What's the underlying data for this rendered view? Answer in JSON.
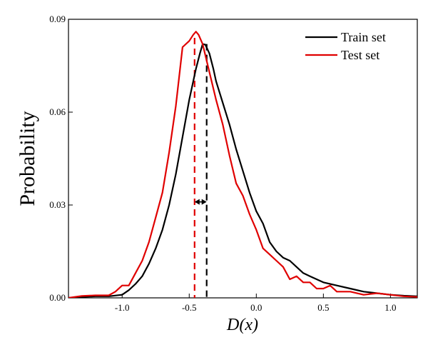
{
  "chart_data": {
    "type": "line",
    "title": "",
    "xlabel": "D(x)",
    "ylabel": "Probability",
    "xlim": [
      -1.4,
      1.2
    ],
    "ylim": [
      0,
      0.09
    ],
    "xticks": [
      -1.0,
      -0.5,
      0.0,
      0.5,
      1.0
    ],
    "xtick_labels": [
      "-1.0",
      "-0.5",
      "0.0",
      "0.5",
      "1.0"
    ],
    "yticks": [
      0.0,
      0.03,
      0.06,
      0.09
    ],
    "ytick_labels": [
      "0.00",
      "0.03",
      "0.06",
      "0.09"
    ],
    "legend_position": "top-right",
    "series": [
      {
        "name": "Train set",
        "color": "#000000",
        "points": [
          [
            -1.4,
            0.0
          ],
          [
            -1.3,
            0.0003
          ],
          [
            -1.2,
            0.0005
          ],
          [
            -1.1,
            0.0005
          ],
          [
            -1.0,
            0.001
          ],
          [
            -0.95,
            0.0025
          ],
          [
            -0.9,
            0.0045
          ],
          [
            -0.85,
            0.007
          ],
          [
            -0.8,
            0.011
          ],
          [
            -0.75,
            0.016
          ],
          [
            -0.7,
            0.022
          ],
          [
            -0.65,
            0.03
          ],
          [
            -0.6,
            0.04
          ],
          [
            -0.55,
            0.052
          ],
          [
            -0.5,
            0.064
          ],
          [
            -0.45,
            0.074
          ],
          [
            -0.42,
            0.079
          ],
          [
            -0.4,
            0.082
          ],
          [
            -0.38,
            0.0818
          ],
          [
            -0.35,
            0.079
          ],
          [
            -0.32,
            0.074
          ],
          [
            -0.3,
            0.07
          ],
          [
            -0.25,
            0.063
          ],
          [
            -0.2,
            0.056
          ],
          [
            -0.15,
            0.048
          ],
          [
            -0.1,
            0.041
          ],
          [
            -0.05,
            0.034
          ],
          [
            0.0,
            0.028
          ],
          [
            0.05,
            0.024
          ],
          [
            0.1,
            0.018
          ],
          [
            0.15,
            0.015
          ],
          [
            0.2,
            0.013
          ],
          [
            0.25,
            0.012
          ],
          [
            0.3,
            0.01
          ],
          [
            0.35,
            0.008
          ],
          [
            0.4,
            0.007
          ],
          [
            0.5,
            0.005
          ],
          [
            0.6,
            0.004
          ],
          [
            0.7,
            0.003
          ],
          [
            0.8,
            0.002
          ],
          [
            0.9,
            0.0015
          ],
          [
            1.0,
            0.001
          ],
          [
            1.1,
            0.0007
          ],
          [
            1.2,
            0.0005
          ]
        ]
      },
      {
        "name": "Test set",
        "color": "#e00000",
        "points": [
          [
            -1.4,
            0.0
          ],
          [
            -1.3,
            0.0006
          ],
          [
            -1.2,
            0.0008
          ],
          [
            -1.1,
            0.0008
          ],
          [
            -1.05,
            0.002
          ],
          [
            -1.0,
            0.004
          ],
          [
            -0.95,
            0.004
          ],
          [
            -0.9,
            0.008
          ],
          [
            -0.85,
            0.012
          ],
          [
            -0.8,
            0.018
          ],
          [
            -0.75,
            0.026
          ],
          [
            -0.7,
            0.034
          ],
          [
            -0.65,
            0.047
          ],
          [
            -0.6,
            0.062
          ],
          [
            -0.55,
            0.081
          ],
          [
            -0.5,
            0.083
          ],
          [
            -0.47,
            0.085
          ],
          [
            -0.45,
            0.086
          ],
          [
            -0.43,
            0.085
          ],
          [
            -0.4,
            0.082
          ],
          [
            -0.35,
            0.073
          ],
          [
            -0.3,
            0.064
          ],
          [
            -0.25,
            0.056
          ],
          [
            -0.2,
            0.046
          ],
          [
            -0.15,
            0.037
          ],
          [
            -0.1,
            0.033
          ],
          [
            -0.05,
            0.027
          ],
          [
            0.0,
            0.022
          ],
          [
            0.05,
            0.016
          ],
          [
            0.1,
            0.014
          ],
          [
            0.15,
            0.012
          ],
          [
            0.2,
            0.01
          ],
          [
            0.25,
            0.006
          ],
          [
            0.3,
            0.007
          ],
          [
            0.35,
            0.005
          ],
          [
            0.4,
            0.005
          ],
          [
            0.45,
            0.003
          ],
          [
            0.5,
            0.003
          ],
          [
            0.55,
            0.004
          ],
          [
            0.6,
            0.002
          ],
          [
            0.7,
            0.002
          ],
          [
            0.8,
            0.001
          ],
          [
            0.9,
            0.0015
          ],
          [
            1.0,
            0.001
          ],
          [
            1.1,
            0.0005
          ],
          [
            1.2,
            0.0003
          ]
        ]
      }
    ],
    "reference_lines": [
      {
        "name": "test-peak-line",
        "x": -0.46,
        "y_top": 0.084,
        "color": "#e00000",
        "style": "dashed"
      },
      {
        "name": "train-peak-line",
        "x": -0.37,
        "y_top": 0.082,
        "color": "#000000",
        "style": "dashed"
      }
    ],
    "annotations": [
      {
        "type": "double-arrow",
        "from_x": -0.46,
        "to_x": -0.37,
        "y": 0.031
      }
    ]
  }
}
